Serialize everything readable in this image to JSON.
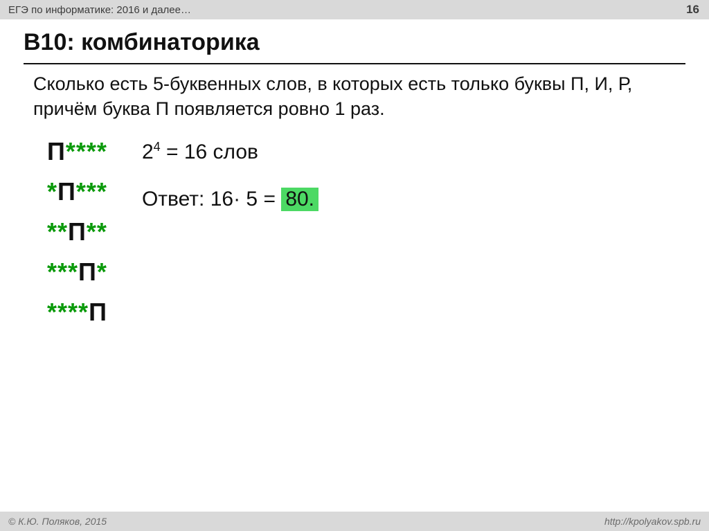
{
  "header": {
    "breadcrumb": "ЕГЭ по информатике: 2016 и далее…",
    "slide_number": "16"
  },
  "title": "B10: комбинаторика",
  "problem": "Сколько есть 5-буквенных слов, в которых есть только буквы П, И, Р, причём буква П появляется ровно 1 раз.",
  "patterns": {
    "letter": "П",
    "wildcard": "*",
    "rows": [
      [
        true,
        false,
        false,
        false,
        false
      ],
      [
        false,
        true,
        false,
        false,
        false
      ],
      [
        false,
        false,
        true,
        false,
        false
      ],
      [
        false,
        false,
        false,
        true,
        false
      ],
      [
        false,
        false,
        false,
        false,
        true
      ]
    ],
    "colors": {
      "letter": "#111111",
      "wildcard": "#0a9a0a"
    }
  },
  "calc": {
    "base": "2",
    "exponent": "4",
    "eq": " = 16 слов"
  },
  "answer": {
    "prefix": "Ответ: 16",
    "middle": " 5 = ",
    "highlighted": "80.",
    "dot_operator": "·"
  },
  "footer": {
    "copyright": "© К.Ю. Поляков, 2015",
    "url": "http://kpolyakov.spb.ru"
  },
  "style": {
    "header_bg": "#d9d9d9",
    "footer_bg": "#d9d9d9",
    "highlight_bg": "#4cd964",
    "title_fontsize": 34,
    "problem_fontsize": 27,
    "pattern_fontsize": 36,
    "calc_fontsize": 30
  }
}
